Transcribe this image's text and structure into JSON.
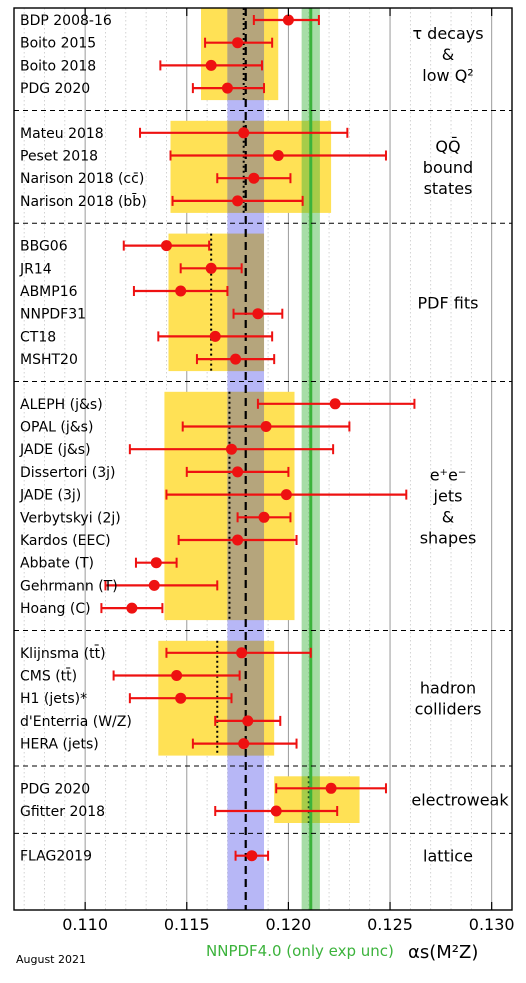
{
  "chart_data": {
    "type": "scatter",
    "xlabel": "αs(M²Z)",
    "xlim": [
      0.1065,
      0.131
    ],
    "xticks": [
      0.11,
      0.115,
      0.12,
      0.125,
      0.13
    ],
    "xtick_labels": [
      "0.110",
      "0.115",
      "0.120",
      "0.125",
      "0.130"
    ],
    "grid": "vertical minor",
    "world_average": {
      "value": 0.1179,
      "band": [
        0.117,
        0.1188
      ]
    },
    "nnpdf_band": {
      "label": "NNPDF4.0 (only exp unc)",
      "value": 0.1211,
      "band": [
        0.1207,
        0.1215
      ],
      "color": "#3cb33c"
    },
    "footnote": "August 2021",
    "colors": {
      "point": "#ee1111",
      "box": "#ffe155",
      "average_band": "#aaaaf5",
      "overlap": "#b5a57c"
    },
    "groups": [
      {
        "label_lines": [
          "τ decays",
          "&",
          "low Q²"
        ],
        "box": [
          0.1157,
          0.1195
        ],
        "dotted": 0.1178,
        "entries": [
          {
            "name": "BDP 2008-16",
            "value": 0.12,
            "err": [
              0.1183,
              0.1215
            ]
          },
          {
            "name": "Boito 2015",
            "value": 0.1175,
            "err": [
              0.1159,
              0.1192
            ]
          },
          {
            "name": "Boito 2018",
            "value": 0.1162,
            "err": [
              0.1137,
              0.1187
            ]
          },
          {
            "name": "PDG 2020",
            "value": 0.117,
            "err": [
              0.1153,
              0.1188
            ]
          }
        ]
      },
      {
        "label_lines": [
          "QQ̄",
          "bound",
          "states"
        ],
        "box": [
          0.1142,
          0.1221
        ],
        "dotted": 0.1178,
        "entries": [
          {
            "name": "Mateu 2018",
            "value": 0.1178,
            "err": [
              0.1127,
              0.1229
            ]
          },
          {
            "name": "Peset 2018",
            "value": 0.1195,
            "err": [
              0.1142,
              0.1248
            ]
          },
          {
            "name": "Narison 2018 (cc̄)",
            "value": 0.1183,
            "err": [
              0.1165,
              0.1201
            ]
          },
          {
            "name": "Narison 2018 (bb̄)",
            "value": 0.1175,
            "err": [
              0.1143,
              0.1207
            ]
          }
        ]
      },
      {
        "label_lines": [
          "PDF fits"
        ],
        "box": [
          0.1141,
          0.1188
        ],
        "dotted": 0.1162,
        "entries": [
          {
            "name": "BBG06",
            "value": 0.114,
            "err": [
              0.1119,
              0.1161
            ]
          },
          {
            "name": "JR14",
            "value": 0.1162,
            "err": [
              0.1147,
              0.1177
            ]
          },
          {
            "name": "ABMP16",
            "value": 0.1147,
            "err": [
              0.1124,
              0.117
            ]
          },
          {
            "name": "NNPDF31",
            "value": 0.1185,
            "err": [
              0.1173,
              0.1197
            ]
          },
          {
            "name": "CT18",
            "value": 0.1164,
            "err": [
              0.1136,
              0.1192
            ]
          },
          {
            "name": "MSHT20",
            "value": 0.1174,
            "err": [
              0.1155,
              0.1193
            ]
          }
        ]
      },
      {
        "label_lines": [
          "e⁺e⁻",
          "jets",
          "&",
          "shapes"
        ],
        "box": [
          0.1139,
          0.1203
        ],
        "dotted": 0.1171,
        "entries": [
          {
            "name": "ALEPH (j&s)",
            "value": 0.1223,
            "err": [
              0.1185,
              0.1262
            ]
          },
          {
            "name": "OPAL (j&s)",
            "value": 0.1189,
            "err": [
              0.1148,
              0.123
            ]
          },
          {
            "name": "JADE (j&s)",
            "value": 0.1172,
            "err": [
              0.1122,
              0.1222
            ]
          },
          {
            "name": "Dissertori (3j)",
            "value": 0.1175,
            "err": [
              0.115,
              0.12
            ]
          },
          {
            "name": "JADE (3j)",
            "value": 0.1199,
            "err": [
              0.114,
              0.1258
            ]
          },
          {
            "name": "Verbytskyi (2j)",
            "value": 0.1188,
            "err": [
              0.1175,
              0.1201
            ]
          },
          {
            "name": "Kardos (EEC)",
            "value": 0.1175,
            "err": [
              0.1146,
              0.1204
            ]
          },
          {
            "name": "Abbate (T)",
            "value": 0.1135,
            "err": [
              0.1125,
              0.1145
            ]
          },
          {
            "name": "Gehrmann (T)",
            "value": 0.1134,
            "err": [
              0.111,
              0.1165
            ]
          },
          {
            "name": "Hoang (C)",
            "value": 0.1123,
            "err": [
              0.1108,
              0.1138
            ]
          }
        ]
      },
      {
        "label_lines": [
          "hadron",
          "colliders"
        ],
        "box": [
          0.1136,
          0.1193
        ],
        "dotted": 0.1165,
        "entries": [
          {
            "name": "Klijnsma (tt̄)",
            "value": 0.1177,
            "err": [
              0.114,
              0.1211
            ]
          },
          {
            "name": "CMS (tt̄)",
            "value": 0.1145,
            "err": [
              0.1114,
              0.1176
            ]
          },
          {
            "name": "H1 (jets)*",
            "value": 0.1147,
            "err": [
              0.1122,
              0.1172
            ]
          },
          {
            "name": "d'Enterria (W/Z)",
            "value": 0.118,
            "err": [
              0.1164,
              0.1196
            ]
          },
          {
            "name": "HERA (jets)",
            "value": 0.1178,
            "err": [
              0.1153,
              0.1204
            ]
          }
        ]
      },
      {
        "label_lines": [
          "electroweak"
        ],
        "box": [
          0.1193,
          0.1235
        ],
        "dotted": 0.121,
        "entries": [
          {
            "name": "PDG 2020",
            "value": 0.1221,
            "err": [
              0.1194,
              0.1248
            ]
          },
          {
            "name": "Gfitter 2018",
            "value": 0.1194,
            "err": [
              0.1164,
              0.1224
            ]
          }
        ]
      },
      {
        "label_lines": [
          "lattice"
        ],
        "box": null,
        "dotted": null,
        "entries": [
          {
            "name": "FLAG2019",
            "value": 0.1182,
            "err": [
              0.1174,
              0.119
            ]
          }
        ]
      }
    ]
  }
}
